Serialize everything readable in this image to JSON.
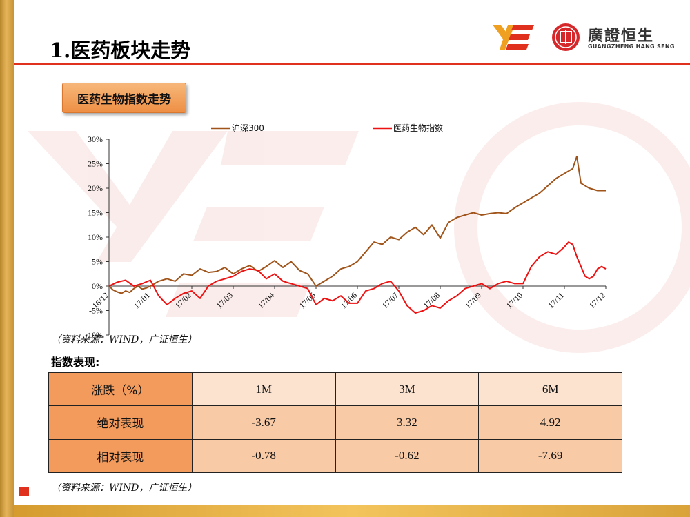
{
  "page": {
    "title": "1.医药板块走势",
    "section_label": "医药生物指数走势",
    "source_text": "（资料来源：WIND，广证恒生）",
    "table_heading": "指数表现:"
  },
  "logo": {
    "cn_name": "廣證恒生",
    "en_name": "GUANGZHENG HANG SENG"
  },
  "performance_table": {
    "header": [
      "涨跌（%）",
      "1M",
      "3M",
      "6M"
    ],
    "rows": [
      {
        "label": "绝对表现",
        "values": [
          "-3.67",
          "3.32",
          "4.92"
        ]
      },
      {
        "label": "相对表现",
        "values": [
          "-0.78",
          "-0.62",
          "-7.69"
        ]
      }
    ]
  },
  "colors": {
    "accent_red": "#e0301e",
    "series_hs300": "#a0541a",
    "series_pharma": "#ee1111",
    "gold": "#d9a33a",
    "header_orange": "#f29b5c",
    "cell_peach": "#f8cba6"
  },
  "chart_data": {
    "type": "line",
    "title": "",
    "xlabel": "",
    "ylabel": "",
    "ylim": [
      -10,
      30
    ],
    "ytick_labels": [
      "-10%",
      "-5%",
      "0%",
      "5%",
      "10%",
      "15%",
      "20%",
      "25%",
      "30%"
    ],
    "xtick_labels": [
      "16/12",
      "17/01",
      "17/02",
      "17/03",
      "17/04",
      "17/05",
      "17/06",
      "17/07",
      "17/08",
      "17/09",
      "17/10",
      "17/11",
      "17/12"
    ],
    "legend_position": "top-center",
    "series": [
      {
        "name": "沪深300",
        "x": [
          0,
          0.1,
          0.2,
          0.3,
          0.4,
          0.5,
          0.6,
          0.7,
          0.8,
          0.9,
          1,
          1.2,
          1.4,
          1.6,
          1.8,
          2,
          2.2,
          2.4,
          2.6,
          2.8,
          3,
          3.2,
          3.4,
          3.6,
          3.8,
          4,
          4.2,
          4.4,
          4.6,
          4.8,
          5,
          5.2,
          5.4,
          5.6,
          5.8,
          6,
          6.2,
          6.4,
          6.6,
          6.8,
          7,
          7.2,
          7.4,
          7.6,
          7.8,
          8,
          8.2,
          8.4,
          8.6,
          8.8,
          9,
          9.2,
          9.4,
          9.6,
          9.8,
          10,
          10.2,
          10.4,
          10.6,
          10.8,
          11,
          11.2,
          11.3,
          11.4,
          11.6,
          11.8,
          12
        ],
        "values": [
          0,
          -0.8,
          -1.2,
          -1.5,
          -1,
          -1.3,
          -0.5,
          0,
          -0.6,
          -0.4,
          0,
          1,
          1.5,
          1,
          2.5,
          2.2,
          3.5,
          2.8,
          3,
          3.8,
          2.5,
          3.5,
          4.2,
          3,
          4,
          5.2,
          3.8,
          5,
          3.2,
          2.5,
          0,
          1,
          2,
          3.5,
          4,
          5,
          7,
          9,
          8.5,
          10,
          9.5,
          11,
          12,
          10.5,
          12.5,
          9.8,
          13,
          14,
          14.5,
          15,
          14.5,
          14.8,
          15,
          14.8,
          16,
          17,
          18,
          19,
          20.5,
          22,
          23,
          24,
          26.5,
          21,
          20,
          19.5,
          19.5
        ]
      },
      {
        "name": "医药生物指数",
        "x": [
          0,
          0.2,
          0.4,
          0.6,
          0.8,
          1,
          1.2,
          1.4,
          1.6,
          1.8,
          2,
          2.2,
          2.4,
          2.6,
          2.8,
          3,
          3.2,
          3.4,
          3.6,
          3.8,
          4,
          4.2,
          4.4,
          4.6,
          4.8,
          5,
          5.2,
          5.4,
          5.6,
          5.8,
          6,
          6.2,
          6.4,
          6.6,
          6.8,
          7,
          7.2,
          7.4,
          7.6,
          7.8,
          8,
          8.2,
          8.4,
          8.6,
          8.8,
          9,
          9.2,
          9.4,
          9.6,
          9.8,
          10,
          10.2,
          10.4,
          10.6,
          10.8,
          11,
          11.1,
          11.2,
          11.3,
          11.4,
          11.5,
          11.6,
          11.7,
          11.8,
          11.9,
          12
        ],
        "values": [
          0,
          0.8,
          1.2,
          0,
          0.5,
          1.2,
          -2,
          -3.8,
          -2.5,
          -1.5,
          -1,
          -2.5,
          0,
          1,
          1.5,
          2,
          3,
          3.5,
          3.2,
          1.5,
          2.5,
          1,
          0.5,
          0,
          -0.5,
          -3.8,
          -2.5,
          -3,
          -2,
          -3.5,
          -3.5,
          -1,
          -0.5,
          0.5,
          1,
          -1,
          -4,
          -5.5,
          -5,
          -4,
          -4.5,
          -3,
          -2,
          -0.5,
          0,
          0.5,
          -0.5,
          0.5,
          1,
          0.5,
          0.5,
          4,
          6,
          7,
          6.5,
          8,
          9,
          8.5,
          6,
          4,
          2,
          1.5,
          2,
          3.5,
          4,
          3.5
        ]
      }
    ]
  }
}
